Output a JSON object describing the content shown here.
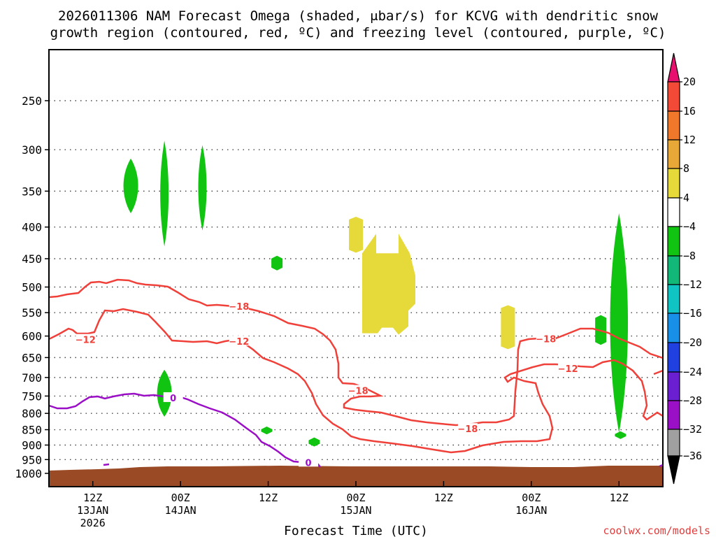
{
  "title": {
    "line1": "2026011306 NAM Forecast Omega (shaded, μbar/s) for KCVG with dendritic snow",
    "line2": "growth region (contoured, red, ºC) and freezing level (contoured, purple, ºC)"
  },
  "credit": "coolwx.com/models",
  "colors": {
    "dgz_contour": "#f0403a",
    "freezing_contour": "#9a0fc6",
    "ground": "#9b4a26",
    "grid": "#555555"
  },
  "chart_data": {
    "type": "heatmap",
    "title": "2026011306 NAM Forecast Omega (shaded, μbar/s) for KCVG with dendritic snow growth region (contoured, red, ºC) and freezing level (contoured, purple, ºC)",
    "xlabel": "Forecast Time (UTC)",
    "ylabel": "",
    "x_range_hours": [
      0,
      84
    ],
    "y_range_hpa": [
      200,
      1000
    ],
    "y_scale": "log-pressure",
    "yticks": [
      "250",
      "300",
      "350",
      "400",
      "450",
      "500",
      "550",
      "600",
      "650",
      "700",
      "750",
      "800",
      "850",
      "900",
      "950",
      "1000"
    ],
    "xticks": [
      {
        "lines": [
          "12Z",
          "13JAN",
          "2026"
        ],
        "hour": 6
      },
      {
        "lines": [
          "00Z",
          "14JAN"
        ],
        "hour": 18
      },
      {
        "lines": [
          "12Z"
        ],
        "hour": 30
      },
      {
        "lines": [
          "00Z",
          "15JAN"
        ],
        "hour": 42
      },
      {
        "lines": [
          "12Z"
        ],
        "hour": 54
      },
      {
        "lines": [
          "00Z",
          "16JAN"
        ],
        "hour": 66
      },
      {
        "lines": [
          "12Z"
        ],
        "hour": 78
      }
    ],
    "grid": "dotted horizontal lines at y ticks",
    "colorbar": {
      "position": "right",
      "labels": [
        "20",
        "16",
        "12",
        "8",
        "4",
        "−4",
        "−8",
        "−12",
        "−16",
        "−20",
        "−24",
        "−28",
        "−32",
        "−36"
      ],
      "colors": [
        "#e8106e",
        "#f24a36",
        "#f0782a",
        "#e8a838",
        "#e6d93a",
        "#ffffff",
        "#11c411",
        "#11b878",
        "#10c4c4",
        "#1890e8",
        "#2040e0",
        "#6a20d0",
        "#9a10c6",
        "#a0a0a0",
        "#000000"
      ]
    },
    "omega_regions": [
      {
        "band": "-4 to -8",
        "color": "#11c411",
        "hour_center": 11.2,
        "p_top": 310,
        "p_bottom": 380
      },
      {
        "band": "-4 to -8",
        "color": "#11c411",
        "hour_center": 15.8,
        "p_top": 290,
        "p_bottom": 430
      },
      {
        "band": "-4 to -8",
        "color": "#11c411",
        "hour_center": 21.0,
        "p_top": 295,
        "p_bottom": 405
      },
      {
        "band": "-4 to -8",
        "color": "#11c411",
        "hour_center": 15.8,
        "p_top": 680,
        "p_bottom": 810
      },
      {
        "band": "-4 to -8",
        "color": "#11c411",
        "hour_center": 31.2,
        "p_top": 445,
        "p_bottom": 470
      },
      {
        "band": "-4 to -8",
        "color": "#11c411",
        "hour_center": 29.8,
        "p_top": 840,
        "p_bottom": 865
      },
      {
        "band": "-4 to -8",
        "color": "#11c411",
        "hour_center": 36.3,
        "p_top": 875,
        "p_bottom": 905
      },
      {
        "band": "4 to 8",
        "color": "#e6d93a",
        "hour_center": 42.0,
        "p_top": 385,
        "p_bottom": 440
      },
      {
        "band": "4 to 8",
        "color": "#e6d93a",
        "hour_center": 46.5,
        "p_top": 410,
        "p_bottom": 600
      },
      {
        "band": "4 to 8",
        "color": "#e6d93a",
        "hour_center": 62.8,
        "p_top": 535,
        "p_bottom": 630
      },
      {
        "band": "-4 to -8",
        "color": "#11c411",
        "hour_center": 75.5,
        "p_top": 555,
        "p_bottom": 620
      },
      {
        "band": "-4 to -8",
        "color": "#11c411",
        "hour_center": 78.0,
        "p_top": 380,
        "p_bottom": 860
      },
      {
        "band": "-4 to -8",
        "color": "#11c411",
        "hour_center": 78.2,
        "p_top": 855,
        "p_bottom": 880
      }
    ],
    "contours": [
      {
        "name": "-12",
        "color": "#f0403a",
        "label": "−12"
      },
      {
        "name": "-18",
        "color": "#f0403a",
        "label": "−18"
      },
      {
        "name": "0",
        "color": "#9a0fc6",
        "label": "0"
      }
    ],
    "contour_labels": [
      {
        "text": "−12",
        "hour": 5.0,
        "p": 608,
        "color": "#f0403a"
      },
      {
        "text": "−18",
        "hour": 26.0,
        "p": 537,
        "color": "#f0403a"
      },
      {
        "text": "−12",
        "hour": 26.0,
        "p": 612,
        "color": "#f0403a"
      },
      {
        "text": "−18",
        "hour": 42.3,
        "p": 735,
        "color": "#f0403a"
      },
      {
        "text": "−18",
        "hour": 57.3,
        "p": 847,
        "color": "#f0403a"
      },
      {
        "text": "−18",
        "hour": 68.0,
        "p": 606,
        "color": "#f0403a"
      },
      {
        "text": "−12",
        "hour": 71.0,
        "p": 677,
        "color": "#f0403a"
      },
      {
        "text": "0",
        "hour": 17.0,
        "p": 755,
        "color": "#9a0fc6"
      },
      {
        "text": "0",
        "hour": 35.5,
        "p": 960,
        "color": "#9a0fc6"
      }
    ]
  }
}
